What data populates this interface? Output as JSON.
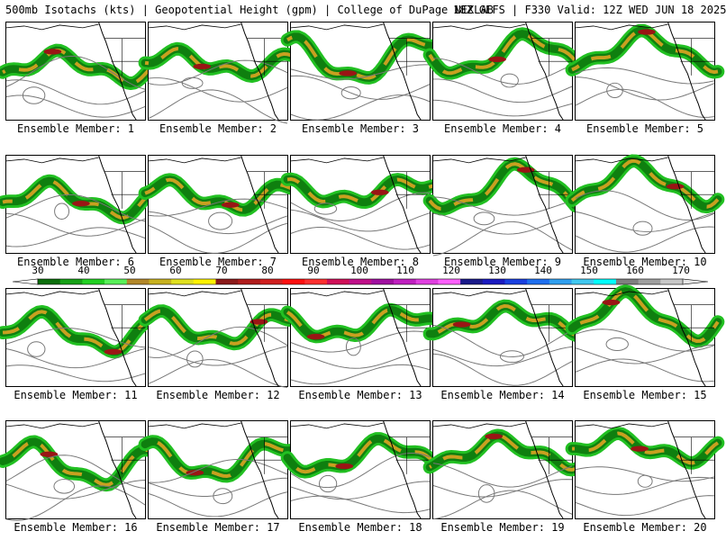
{
  "header": {
    "product": "500mb Isotachs (kts) | Geopotential Height (gpm) | College of DuPage NEXLAB",
    "run": "18Z GEFS | F330 Valid: 12Z WED JUN 18 2025"
  },
  "colorbar": {
    "labels": [
      "30",
      "40",
      "50",
      "60",
      "70",
      "80",
      "90",
      "100",
      "110",
      "120",
      "130",
      "140",
      "150",
      "160",
      "170"
    ],
    "colors": [
      "#0b6e0b",
      "#17a117",
      "#22d022",
      "#59f059",
      "#b3882a",
      "#c8b220",
      "#e0e020",
      "#fff200",
      "#8b1a1a",
      "#b01c1c",
      "#d02020",
      "#ff1010",
      "#ff3030",
      "#d01058",
      "#c0108a",
      "#a010a0",
      "#c020c0",
      "#e040e0",
      "#ff60ff",
      "#1a1a8a",
      "#1a1ac0",
      "#1a40e0",
      "#2070f0",
      "#30a0f0",
      "#40c8f0",
      "#00ffff",
      "#808080",
      "#a0a0a0",
      "#c8c8c8"
    ]
  },
  "members": [
    {
      "caption": "Ensemble Member: 1"
    },
    {
      "caption": "Ensemble Member: 2"
    },
    {
      "caption": "Ensemble Member: 3"
    },
    {
      "caption": "Ensemble Member: 4"
    },
    {
      "caption": "Ensemble Member: 5"
    },
    {
      "caption": "Ensemble Member: 6"
    },
    {
      "caption": "Ensemble Member: 7"
    },
    {
      "caption": "Ensemble Member: 8"
    },
    {
      "caption": "Ensemble Member: 9"
    },
    {
      "caption": "Ensemble Member: 10"
    },
    {
      "caption": "Ensemble Member: 11"
    },
    {
      "caption": "Ensemble Member: 12"
    },
    {
      "caption": "Ensemble Member: 13"
    },
    {
      "caption": "Ensemble Member: 14"
    },
    {
      "caption": "Ensemble Member: 15"
    },
    {
      "caption": "Ensemble Member: 16"
    },
    {
      "caption": "Ensemble Member: 17"
    },
    {
      "caption": "Ensemble Member: 18"
    },
    {
      "caption": "Ensemble Member: 19"
    },
    {
      "caption": "Ensemble Member: 20"
    }
  ]
}
